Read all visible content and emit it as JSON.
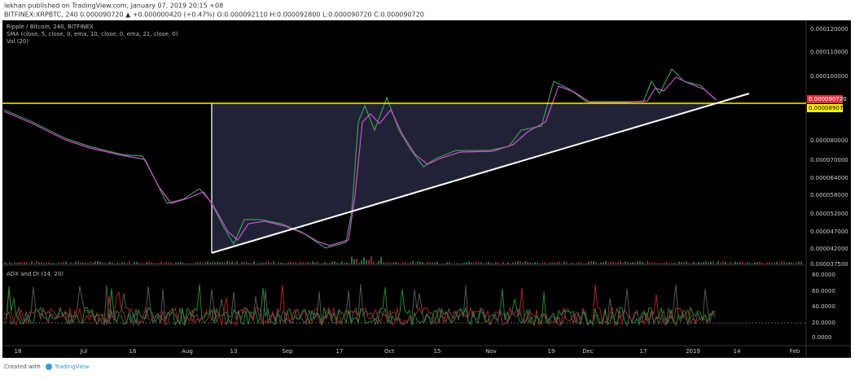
{
  "header": {
    "line1": "lekhan published on TradingView.com, January 07, 2019 20:15 +08",
    "line2": "BITFINEX:XRPBTC, 240  0.000090720 ▲ +0.000000420 (+0.47%)  O:0.000092110 H:0.000092800 L:0.000090720 C:0.000090720"
  },
  "pane": {
    "symbol": "Ripple / Bitcoin, 240, BITFINEX",
    "sma": "SMA (close, 5, close, 0, ema, 10, close, 0, ema, 21, close, 0)",
    "volume": "Vol (20)",
    "adx": "ADX and DI (14, 20)"
  },
  "price_axis": [
    "0.000120000",
    "0.000110000",
    "0.000100000",
    "0.000080000",
    "0.000070000",
    "0.000064000",
    "0.000058000",
    "0.000052000",
    "0.000047000",
    "0.000042000",
    "0.000037500"
  ],
  "last_price": "0.000090720",
  "level_price": "0.000089076",
  "adx_axis": [
    "80.0000",
    "60.0000",
    "40.0000",
    "20.0000",
    "0.0000"
  ],
  "date_axis": [
    "18",
    "Jul",
    "16",
    "Aug",
    "13",
    "Sep",
    "17",
    "Oct",
    "15",
    "Nov",
    "19",
    "Dec",
    "17",
    "2019",
    "14",
    "Feb"
  ],
  "footer": {
    "created": "Created with",
    "brand": "TradingView"
  }
}
